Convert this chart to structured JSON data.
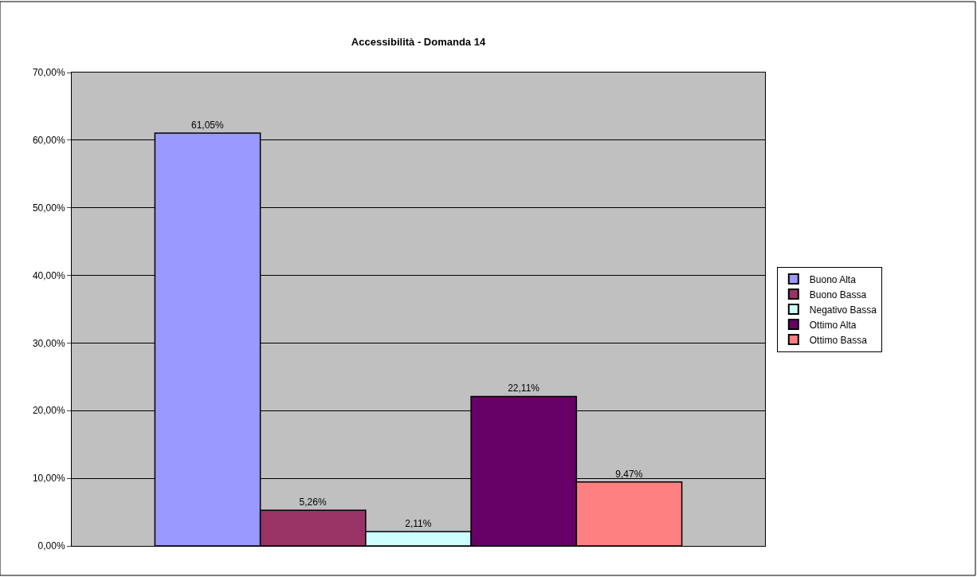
{
  "chart_data": {
    "type": "bar",
    "title": "Accessibilità - Domanda 14",
    "categories": [
      null
    ],
    "series": [
      {
        "name": "Buono Alta",
        "color": "#9999ff",
        "values": [
          61.05
        ],
        "value_labels": [
          "61,05%"
        ]
      },
      {
        "name": "Buono Bassa",
        "color": "#993366",
        "values": [
          5.26
        ],
        "value_labels": [
          "5,26%"
        ]
      },
      {
        "name": "Negativo Bassa",
        "color": "#ccffff",
        "values": [
          2.11
        ],
        "value_labels": [
          "2,11%"
        ]
      },
      {
        "name": "Ottimo Alta",
        "color": "#660066",
        "values": [
          22.11
        ],
        "value_labels": [
          "22,11%"
        ]
      },
      {
        "name": "Ottimo Bassa",
        "color": "#ff8080",
        "values": [
          9.47
        ],
        "value_labels": [
          "9,47%"
        ]
      }
    ],
    "ylim": [
      0,
      70
    ],
    "yticks": [
      {
        "value": 0,
        "label": "0,00%"
      },
      {
        "value": 10,
        "label": "10,00%"
      },
      {
        "value": 20,
        "label": "20,00%"
      },
      {
        "value": 30,
        "label": "30,00%"
      },
      {
        "value": 40,
        "label": "40,00%"
      },
      {
        "value": 50,
        "label": "50,00%"
      },
      {
        "value": 60,
        "label": "60,00%"
      },
      {
        "value": 70,
        "label": "70,00%"
      }
    ],
    "grid": "y",
    "legend": "right",
    "tick_labels": "y"
  }
}
